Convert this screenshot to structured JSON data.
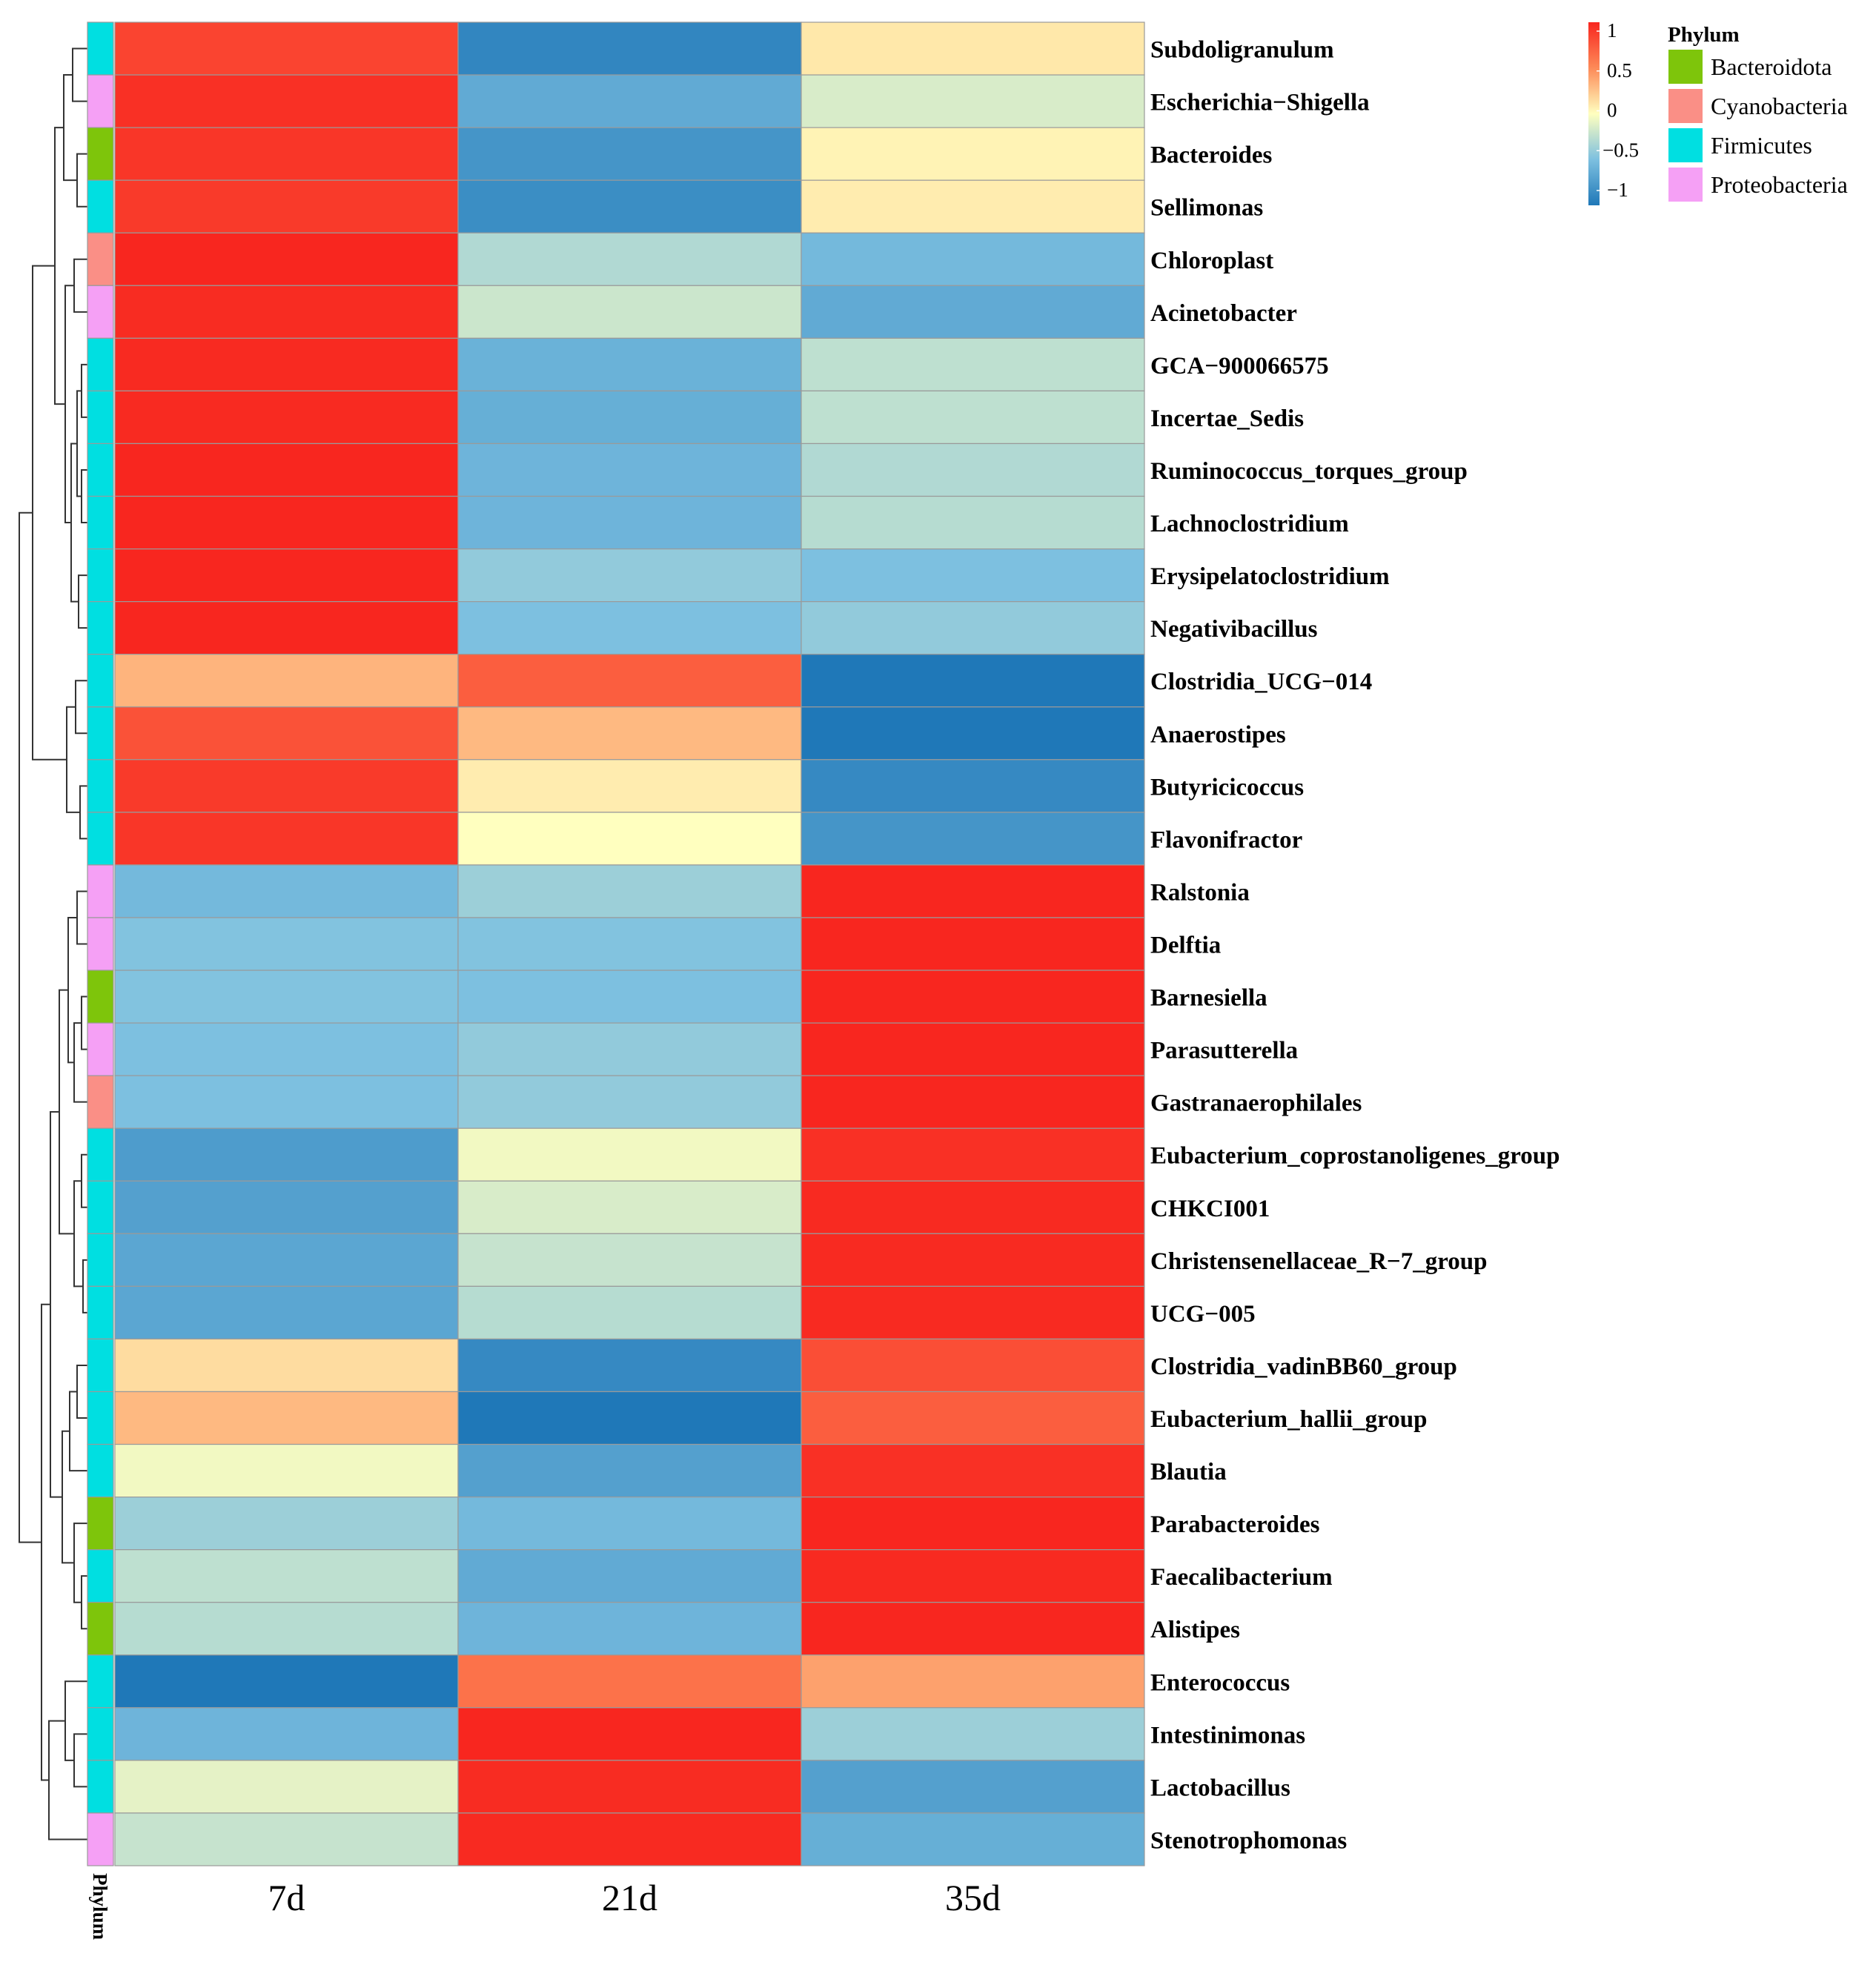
{
  "chart_data": {
    "type": "heatmap",
    "title": "",
    "columns": [
      "7d",
      "21d",
      "35d"
    ],
    "rows": [
      {
        "genus": "Subdoligranulum",
        "phylum": "Firmicutes",
        "values": [
          0.85,
          -0.9,
          0.1
        ]
      },
      {
        "genus": "Escherichia−Shigella",
        "phylum": "Proteobacteria",
        "values": [
          0.95,
          -0.65,
          -0.15
        ]
      },
      {
        "genus": "Bacteroides",
        "phylum": "Bacteroidota",
        "values": [
          0.92,
          -0.8,
          0.05
        ]
      },
      {
        "genus": "Sellimonas",
        "phylum": "Firmicutes",
        "values": [
          0.9,
          -0.85,
          0.08
        ]
      },
      {
        "genus": "Chloroplast",
        "phylum": "Cyanobacteria",
        "values": [
          1.0,
          -0.3,
          -0.55
        ]
      },
      {
        "genus": "Acinetobacter",
        "phylum": "Proteobacteria",
        "values": [
          0.97,
          -0.2,
          -0.65
        ]
      },
      {
        "genus": "GCA−900066575",
        "phylum": "Firmicutes",
        "values": [
          0.98,
          -0.6,
          -0.25
        ]
      },
      {
        "genus": "Incertae_Sedis",
        "phylum": "Firmicutes",
        "values": [
          0.98,
          -0.62,
          -0.25
        ]
      },
      {
        "genus": "Ruminococcus_torques_group",
        "phylum": "Firmicutes",
        "values": [
          1.0,
          -0.58,
          -0.3
        ]
      },
      {
        "genus": "Lachnoclostridium",
        "phylum": "Firmicutes",
        "values": [
          1.0,
          -0.58,
          -0.28
        ]
      },
      {
        "genus": "Erysipelatoclostridium",
        "phylum": "Firmicutes",
        "values": [
          1.0,
          -0.42,
          -0.5
        ]
      },
      {
        "genus": "Negativibacillus",
        "phylum": "Firmicutes",
        "values": [
          1.0,
          -0.5,
          -0.42
        ]
      },
      {
        "genus": "Clostridia_UCG−014",
        "phylum": "Firmicutes",
        "values": [
          0.32,
          0.72,
          -1.0
        ]
      },
      {
        "genus": "Anaerostipes",
        "phylum": "Firmicutes",
        "values": [
          0.78,
          0.3,
          -1.0
        ]
      },
      {
        "genus": "Butyricicoccus",
        "phylum": "Firmicutes",
        "values": [
          0.9,
          0.08,
          -0.88
        ]
      },
      {
        "genus": "Flavonifractor",
        "phylum": "Firmicutes",
        "values": [
          0.92,
          0.0,
          -0.8
        ]
      },
      {
        "genus": "Ralstonia",
        "phylum": "Proteobacteria",
        "values": [
          -0.55,
          -0.38,
          1.0
        ]
      },
      {
        "genus": "Delftia",
        "phylum": "Proteobacteria",
        "values": [
          -0.48,
          -0.48,
          1.0
        ]
      },
      {
        "genus": "Barnesiella",
        "phylum": "Bacteroidota",
        "values": [
          -0.48,
          -0.5,
          1.0
        ]
      },
      {
        "genus": "Parasutterella",
        "phylum": "Proteobacteria",
        "values": [
          -0.5,
          -0.42,
          1.0
        ]
      },
      {
        "genus": "Gastranaerophilales",
        "phylum": "Cyanobacteria",
        "values": [
          -0.5,
          -0.42,
          1.0
        ]
      },
      {
        "genus": "Eubacterium_coprostanoligenes_group",
        "phylum": "Firmicutes",
        "values": [
          -0.75,
          -0.05,
          0.95
        ]
      },
      {
        "genus": "CHKCI001",
        "phylum": "Firmicutes",
        "values": [
          -0.72,
          -0.15,
          0.98
        ]
      },
      {
        "genus": "Christensenellaceae_R−7_group",
        "phylum": "Firmicutes",
        "values": [
          -0.68,
          -0.22,
          0.98
        ]
      },
      {
        "genus": "UCG−005",
        "phylum": "Firmicutes",
        "values": [
          -0.68,
          -0.28,
          0.98
        ]
      },
      {
        "genus": "Clostridia_vadinBB60_group",
        "phylum": "Firmicutes",
        "values": [
          0.15,
          -0.88,
          0.8
        ]
      },
      {
        "genus": "Eubacterium_hallii_group",
        "phylum": "Firmicutes",
        "values": [
          0.3,
          -1.0,
          0.72
        ]
      },
      {
        "genus": "Blautia",
        "phylum": "Firmicutes",
        "values": [
          -0.05,
          -0.72,
          0.95
        ]
      },
      {
        "genus": "Parabacteroides",
        "phylum": "Bacteroidota",
        "values": [
          -0.38,
          -0.55,
          1.0
        ]
      },
      {
        "genus": "Faecalibacterium",
        "phylum": "Firmicutes",
        "values": [
          -0.25,
          -0.65,
          0.98
        ]
      },
      {
        "genus": "Alistipes",
        "phylum": "Bacteroidota",
        "values": [
          -0.28,
          -0.58,
          1.0
        ]
      },
      {
        "genus": "Enterococcus",
        "phylum": "Firmicutes",
        "values": [
          -1.0,
          0.62,
          0.4
        ]
      },
      {
        "genus": "Intestinimonas",
        "phylum": "Firmicutes",
        "values": [
          -0.58,
          1.0,
          -0.38
        ]
      },
      {
        "genus": "Lactobacillus",
        "phylum": "Firmicutes",
        "values": [
          -0.1,
          0.97,
          -0.72
        ]
      },
      {
        "genus": "Stenotrophomonas",
        "phylum": "Proteobacteria",
        "values": [
          -0.22,
          0.98,
          -0.62
        ]
      }
    ],
    "color_scale": {
      "min": -1,
      "max": 1,
      "ticks": [
        "1",
        "0.5",
        "0",
        "−0.5",
        "−1"
      ],
      "low_color": "#1f78b8",
      "mid_color": "#ffffbf",
      "high_color": "#f8261f"
    },
    "annotation": {
      "title": "Phylum",
      "axis_label": "Phylum",
      "categories": [
        "Bacteroidota",
        "Cyanobacteria",
        "Firmicutes",
        "Proteobacteria"
      ],
      "colors": {
        "Bacteroidota": "#7ec50b",
        "Cyanobacteria": "#fa8f86",
        "Firmicutes": "#00dfe1",
        "Proteobacteria": "#f5a0f5"
      }
    },
    "legend": "top-right",
    "row_dendrogram": "left"
  }
}
